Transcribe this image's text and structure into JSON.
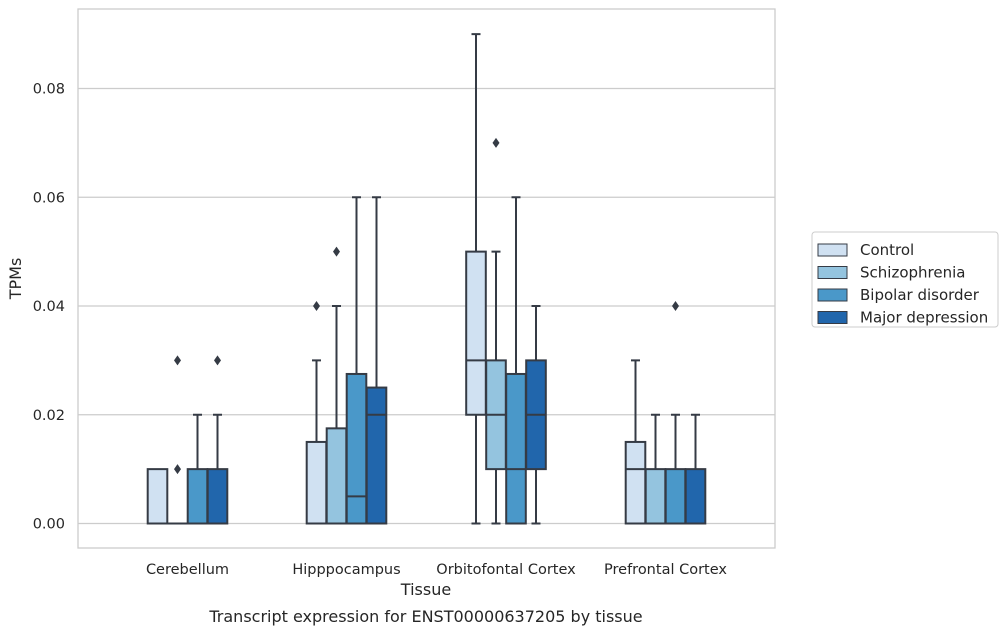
{
  "caption": "Transcript expression for ENST00000637205 by tissue",
  "chart_data": {
    "type": "box",
    "xlabel": "Tissue",
    "ylabel": "TPMs",
    "ylim": [
      -0.0045,
      0.095
    ],
    "yticks": [
      0.0,
      0.02,
      0.04,
      0.06,
      0.08
    ],
    "ytick_labels": [
      "0.00",
      "0.02",
      "0.04",
      "0.06",
      "0.08"
    ],
    "grid": "horizontal",
    "legend_position": "right",
    "categories": [
      "Cerebellum",
      "Hipppocampus",
      "Orbitofontal Cortex",
      "Prefrontal Cortex"
    ],
    "series": [
      {
        "name": "Control",
        "color": "#d0e1f2",
        "boxes": [
          {
            "whislo": 0.0,
            "q1": 0.0,
            "med": 0.0,
            "q3": 0.01,
            "whishi": 0.01,
            "fliers": []
          },
          {
            "whislo": 0.0,
            "q1": 0.0,
            "med": 0.0,
            "q3": 0.015,
            "whishi": 0.03,
            "fliers": [
              0.04
            ]
          },
          {
            "whislo": 0.0,
            "q1": 0.02,
            "med": 0.03,
            "q3": 0.05,
            "whishi": 0.09,
            "fliers": []
          },
          {
            "whislo": 0.0,
            "q1": 0.0,
            "med": 0.01,
            "q3": 0.015,
            "whishi": 0.03,
            "fliers": []
          }
        ]
      },
      {
        "name": "Schizophrenia",
        "color": "#94c4df",
        "boxes": [
          {
            "whislo": 0.0,
            "q1": 0.0,
            "med": 0.0,
            "q3": 0.0,
            "whishi": 0.0,
            "fliers": [
              0.01,
              0.03
            ]
          },
          {
            "whislo": 0.0,
            "q1": 0.0,
            "med": 0.0,
            "q3": 0.0175,
            "whishi": 0.04,
            "fliers": [
              0.05
            ]
          },
          {
            "whislo": 0.0,
            "q1": 0.01,
            "med": 0.02,
            "q3": 0.03,
            "whishi": 0.05,
            "fliers": [
              0.07
            ]
          },
          {
            "whislo": 0.0,
            "q1": 0.0,
            "med": 0.0,
            "q3": 0.01,
            "whishi": 0.02,
            "fliers": []
          }
        ]
      },
      {
        "name": "Bipolar disorder",
        "color": "#4a98c9",
        "boxes": [
          {
            "whislo": 0.0,
            "q1": 0.0,
            "med": 0.0,
            "q3": 0.01,
            "whishi": 0.02,
            "fliers": []
          },
          {
            "whislo": 0.0,
            "q1": 0.0,
            "med": 0.005,
            "q3": 0.0275,
            "whishi": 0.06,
            "fliers": []
          },
          {
            "whislo": 0.0,
            "q1": 0.0,
            "med": 0.01,
            "q3": 0.0275,
            "whishi": 0.06,
            "fliers": []
          },
          {
            "whislo": 0.0,
            "q1": 0.0,
            "med": 0.0,
            "q3": 0.01,
            "whishi": 0.02,
            "fliers": [
              0.04
            ]
          }
        ]
      },
      {
        "name": "Major depression",
        "color": "#2166ac",
        "boxes": [
          {
            "whislo": 0.0,
            "q1": 0.0,
            "med": 0.0,
            "q3": 0.01,
            "whishi": 0.02,
            "fliers": [
              0.03
            ]
          },
          {
            "whislo": 0.0,
            "q1": 0.0,
            "med": 0.02,
            "q3": 0.025,
            "whishi": 0.06,
            "fliers": []
          },
          {
            "whislo": 0.0,
            "q1": 0.01,
            "med": 0.02,
            "q3": 0.03,
            "whishi": 0.04,
            "fliers": []
          },
          {
            "whislo": 0.0,
            "q1": 0.0,
            "med": 0.0,
            "q3": 0.01,
            "whishi": 0.02,
            "fliers": []
          }
        ]
      }
    ]
  }
}
